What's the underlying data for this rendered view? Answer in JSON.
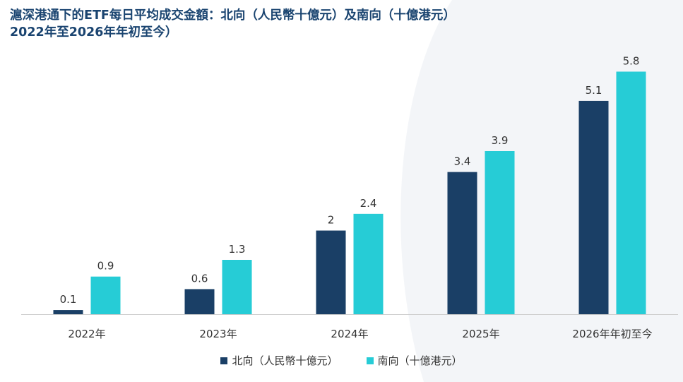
{
  "title": {
    "line1": "滬深港通下的ETF每日平均成交金額：北向（人民幣十億元）及南向（十億港元）",
    "line2": "2022年至2026年年初至今）"
  },
  "colors": {
    "north": "#1a3f66",
    "south": "#26ccd6",
    "axis": "#cccccc",
    "text": "#333333"
  },
  "chart_data": {
    "type": "bar",
    "categories": [
      "2022年",
      "2023年",
      "2024年",
      "2025年",
      "2026年年初至今"
    ],
    "series": [
      {
        "name": "北向（人民幣十億元）",
        "values": [
          0.1,
          0.6,
          2,
          3.4,
          5.1
        ],
        "labels": [
          "0.1",
          "0.6",
          "2",
          "3.4",
          "5.1"
        ]
      },
      {
        "name": "南向（十億港元）",
        "values": [
          0.9,
          1.3,
          2.4,
          3.9,
          5.8
        ],
        "labels": [
          "0.9",
          "1.3",
          "2.4",
          "3.9",
          "5.8"
        ]
      }
    ],
    "ylim": [
      0,
      6.5
    ],
    "legend": "bottom"
  }
}
